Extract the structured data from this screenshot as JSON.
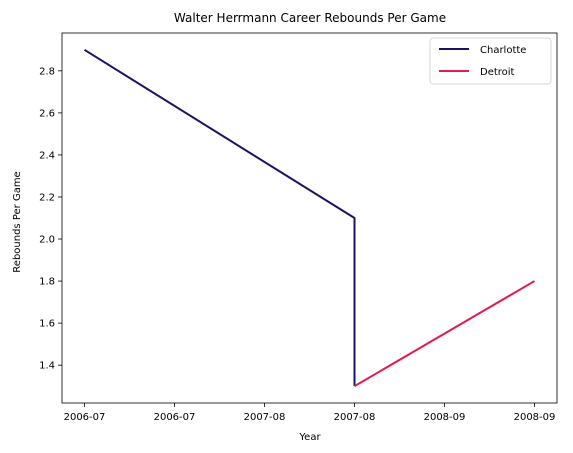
{
  "chart_data": {
    "type": "line",
    "title": "Walter Herrmann Career Rebounds Per Game",
    "xlabel": "Year",
    "ylabel": "Rebounds Per Game",
    "x_tick_labels": [
      "2006-07",
      "2006-07",
      "2007-08",
      "2007-08",
      "2008-09",
      "2008-09"
    ],
    "x_tick_positions": [
      0,
      0.5,
      1,
      1.5,
      2,
      2.5
    ],
    "xlim": [
      -0.125,
      2.625
    ],
    "y_ticks": [
      1.4,
      1.6,
      1.8,
      2.0,
      2.2,
      2.4,
      2.6,
      2.8
    ],
    "y_tick_labels": [
      "1.4",
      "1.6",
      "1.8",
      "2.0",
      "2.2",
      "2.4",
      "2.6",
      "2.8"
    ],
    "ylim": [
      1.22,
      2.98
    ],
    "grid": false,
    "legend_position": "top-right",
    "series": [
      {
        "name": "Charlotte",
        "color": "#1b1464",
        "x": [
          0,
          1.5,
          1.5
        ],
        "y": [
          2.9,
          2.1,
          1.3
        ]
      },
      {
        "name": "Detroit",
        "color": "#e31b4f",
        "x": [
          1.5,
          2.5
        ],
        "y": [
          1.3,
          1.8
        ]
      }
    ]
  }
}
